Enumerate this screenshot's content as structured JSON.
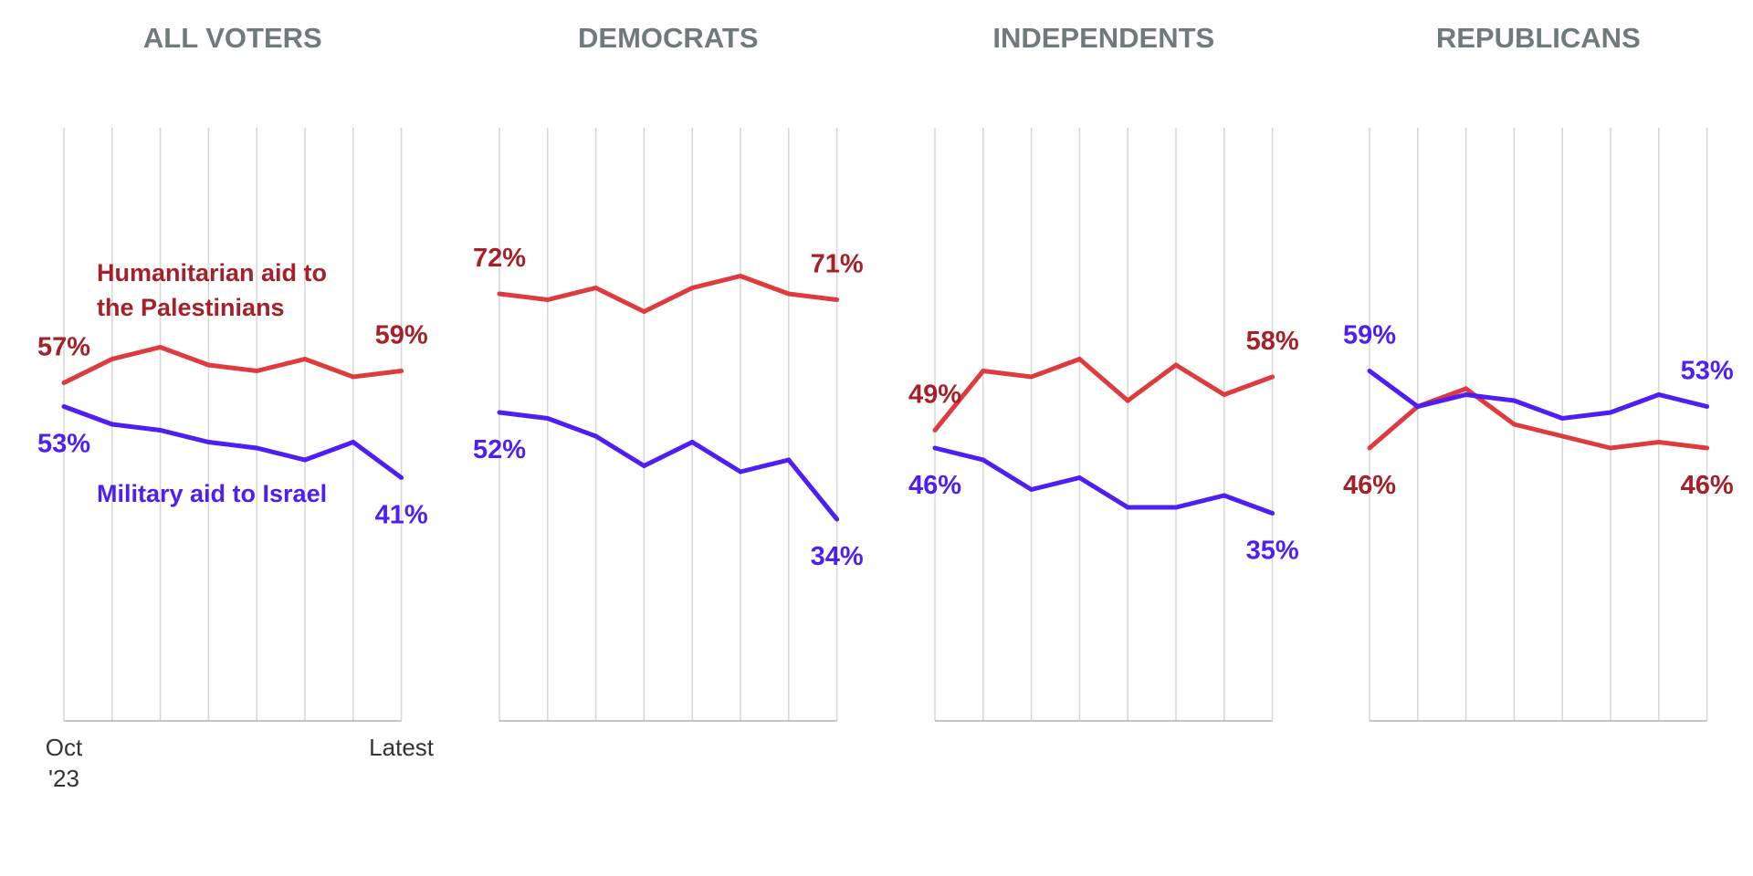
{
  "chart_data": {
    "type": "line",
    "x": [
      "Oct '23",
      "",
      "",
      "",
      "",
      "",
      "",
      "Latest"
    ],
    "x_tick_labels": {
      "start_line1": "Oct",
      "start_line2": "'23",
      "end": "Latest"
    },
    "ylim": [
      0,
      100
    ],
    "grid": true,
    "legend_placement": "inline, inside the first panel",
    "colors": {
      "humanitarian_line": "#dd3b3d",
      "humanitarian_text": "#a4212a",
      "military": "#4e1ef2",
      "title": "#6e7a7b"
    },
    "legend": {
      "humanitarian": [
        "Humanitarian aid to",
        "the Palestinians"
      ],
      "military": "Military aid to Israel"
    },
    "panels": [
      {
        "title": "ALL VOTERS",
        "series": [
          {
            "name": "Humanitarian aid to the Palestinians",
            "key": "humanitarian",
            "values": [
              57,
              61,
              63,
              60,
              59,
              61,
              58,
              59
            ],
            "start_label": "57%",
            "end_label": "59%"
          },
          {
            "name": "Military aid to Israel",
            "key": "military",
            "values": [
              53,
              50,
              49,
              47,
              46,
              44,
              47,
              41
            ],
            "start_label": "53%",
            "end_label": "41%"
          }
        ]
      },
      {
        "title": "DEMOCRATS",
        "series": [
          {
            "name": "Humanitarian aid to the Palestinians",
            "key": "humanitarian",
            "values": [
              72,
              71,
              73,
              69,
              73,
              75,
              72,
              71
            ],
            "start_label": "72%",
            "end_label": "71%"
          },
          {
            "name": "Military aid to Israel",
            "key": "military",
            "values": [
              52,
              51,
              48,
              43,
              47,
              42,
              44,
              34
            ],
            "start_label": "52%",
            "end_label": "34%"
          }
        ]
      },
      {
        "title": "INDEPENDENTS",
        "series": [
          {
            "name": "Humanitarian aid to the Palestinians",
            "key": "humanitarian",
            "values": [
              49,
              59,
              58,
              61,
              54,
              60,
              55,
              58
            ],
            "start_label": "49%",
            "end_label": "58%"
          },
          {
            "name": "Military aid to Israel",
            "key": "military",
            "values": [
              46,
              44,
              39,
              41,
              36,
              36,
              38,
              35
            ],
            "start_label": "46%",
            "end_label": "35%"
          }
        ]
      },
      {
        "title": "REPUBLICANS",
        "series": [
          {
            "name": "Humanitarian aid to the Palestinians",
            "key": "humanitarian",
            "values": [
              46,
              53,
              56,
              50,
              48,
              46,
              47,
              46
            ],
            "start_label": "46%",
            "end_label": "46%"
          },
          {
            "name": "Military aid to Israel",
            "key": "military",
            "values": [
              59,
              53,
              55,
              54,
              51,
              52,
              55,
              53
            ],
            "start_label": "59%",
            "end_label": "53%"
          }
        ]
      }
    ]
  }
}
